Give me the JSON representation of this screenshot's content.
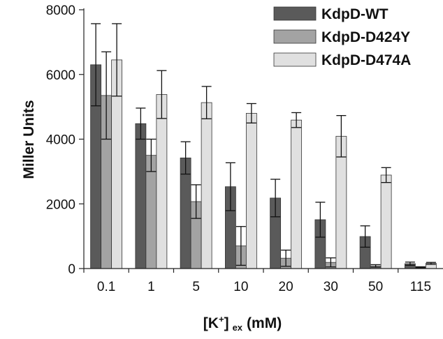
{
  "chart_data": {
    "type": "bar",
    "title": "",
    "xlabel": "[K⁺] ex (mM)",
    "xlabel_parts": {
      "main": "[K",
      "sup": "+",
      "close": "]",
      "sub": "ex",
      "unit": "(mM)"
    },
    "ylabel": "Miller Units",
    "ylim": [
      0,
      8000
    ],
    "yticks": [
      0,
      2000,
      4000,
      6000,
      8000
    ],
    "categories": [
      "0.1",
      "1",
      "5",
      "10",
      "20",
      "30",
      "50",
      "115"
    ],
    "legend_position": "top-right",
    "series": [
      {
        "name": "KdpD-WT",
        "color": "#5a5a5a",
        "values": [
          6300,
          4480,
          3420,
          2530,
          2180,
          1510,
          990,
          150
        ],
        "errors": [
          1270,
          480,
          500,
          740,
          580,
          540,
          330,
          50
        ]
      },
      {
        "name": "KdpD-D424Y",
        "color": "#a3a3a3",
        "values": [
          5350,
          3500,
          2070,
          700,
          320,
          190,
          80,
          40
        ],
        "errors": [
          1350,
          500,
          520,
          600,
          250,
          140,
          40,
          15
        ]
      },
      {
        "name": "KdpD-D474A",
        "color": "#e0e0e0",
        "values": [
          6450,
          5380,
          5130,
          4800,
          4590,
          4090,
          2890,
          160
        ],
        "errors": [
          1120,
          740,
          500,
          300,
          230,
          640,
          230,
          30
        ]
      }
    ]
  }
}
